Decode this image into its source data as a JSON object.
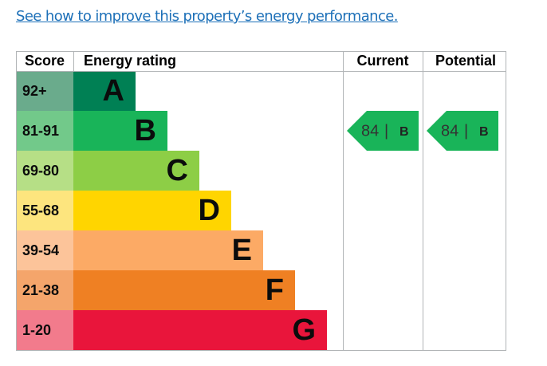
{
  "link": "See how to improve this property’s energy performance.",
  "table": {
    "headers": [
      "Score",
      "Energy rating",
      "Current",
      "Potential"
    ],
    "bands": [
      {
        "score": "92+",
        "letter": "A",
        "score_color": "#6aab8c",
        "color": "#008054"
      },
      {
        "score": "81-91",
        "letter": "B",
        "score_color": "#72c98a",
        "color": "#19b459"
      },
      {
        "score": "69-80",
        "letter": "C",
        "score_color": "#b6df86",
        "color": "#8dce46"
      },
      {
        "score": "55-68",
        "letter": "D",
        "score_color": "#fde57e",
        "color": "#ffd500"
      },
      {
        "score": "39-54",
        "letter": "E",
        "score_color": "#fcc49a",
        "color": "#fcaa65"
      },
      {
        "score": "21-38",
        "letter": "F",
        "score_color": "#f4a56b",
        "color": "#ef8023"
      },
      {
        "score": "1-20",
        "letter": "G",
        "score_color": "#f27b8c",
        "color": "#e9153b"
      }
    ],
    "current": {
      "value": 84,
      "letter": "B"
    },
    "potential": {
      "value": 84,
      "letter": "B"
    }
  }
}
